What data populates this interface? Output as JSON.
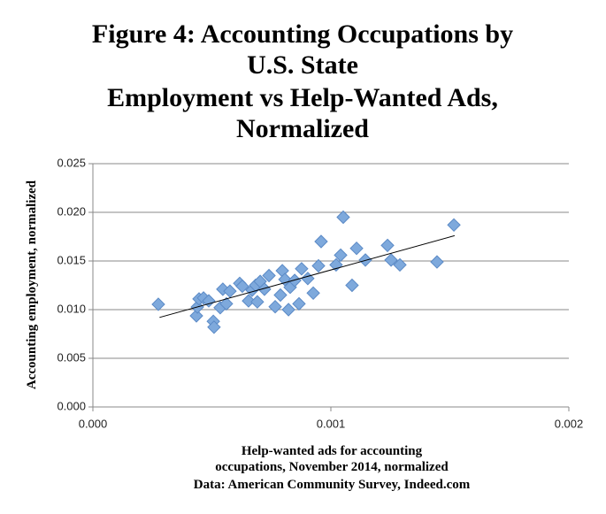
{
  "chart_data": {
    "type": "scatter",
    "title_lines": [
      "Figure 4: Accounting Occupations by",
      "U.S. State",
      "Employment vs Help-Wanted Ads,",
      "Normalized"
    ],
    "xlabel_lines": [
      "Help-wanted ads for accounting",
      "occupations, November 2014, normalized"
    ],
    "source": "Data: American Community Survey, Indeed.com",
    "ylabel": "Accounting employment, normalized",
    "color": "#7ea9dc",
    "x": [
      0.000275,
      0.000435,
      0.000439,
      0.000446,
      0.000465,
      0.000487,
      0.000506,
      0.000509,
      0.000535,
      0.000546,
      0.000561,
      0.000576,
      0.000617,
      0.000628,
      0.000654,
      0.000669,
      0.000684,
      0.000691,
      0.000703,
      0.000721,
      0.00074,
      0.000766,
      0.000788,
      0.000796,
      0.000807,
      0.000822,
      0.000829,
      0.000848,
      0.000866,
      0.000877,
      0.000903,
      0.000926,
      0.000948,
      0.000959,
      0.001022,
      0.001041,
      0.001052,
      0.001089,
      0.001108,
      0.001145,
      0.001238,
      0.001253,
      0.00129,
      0.001446,
      0.001517
    ],
    "y": [
      0.01055,
      0.00936,
      0.01027,
      0.0111,
      0.0112,
      0.0109,
      0.0088,
      0.0082,
      0.0102,
      0.0121,
      0.0106,
      0.0119,
      0.0127,
      0.0124,
      0.0109,
      0.012,
      0.0125,
      0.0108,
      0.0129,
      0.0121,
      0.0135,
      0.0103,
      0.0115,
      0.014,
      0.0131,
      0.01,
      0.0123,
      0.013,
      0.0106,
      0.0142,
      0.0132,
      0.0117,
      0.0145,
      0.017,
      0.0146,
      0.0156,
      0.0195,
      0.0125,
      0.0163,
      0.0151,
      0.0166,
      0.0151,
      0.0146,
      0.0149,
      0.0187
    ],
    "trendline": {
      "x": [
        0.00028,
        0.00152
      ],
      "y": [
        0.0092,
        0.0176
      ]
    },
    "xlim": [
      0,
      0.002
    ],
    "xticks": [
      {
        "value": 0,
        "label": "0.000"
      },
      {
        "value": 0.001,
        "label": "0.001"
      },
      {
        "value": 0.002,
        "label": "0.002"
      }
    ],
    "ylim": [
      0,
      0.025
    ],
    "yticks": [
      {
        "value": 0,
        "label": "0.000"
      },
      {
        "value": 0.005,
        "label": "0.005"
      },
      {
        "value": 0.01,
        "label": "0.010"
      },
      {
        "value": 0.015,
        "label": "0.015"
      },
      {
        "value": 0.02,
        "label": "0.020"
      },
      {
        "value": 0.025,
        "label": "0.025"
      }
    ],
    "grid": true
  }
}
